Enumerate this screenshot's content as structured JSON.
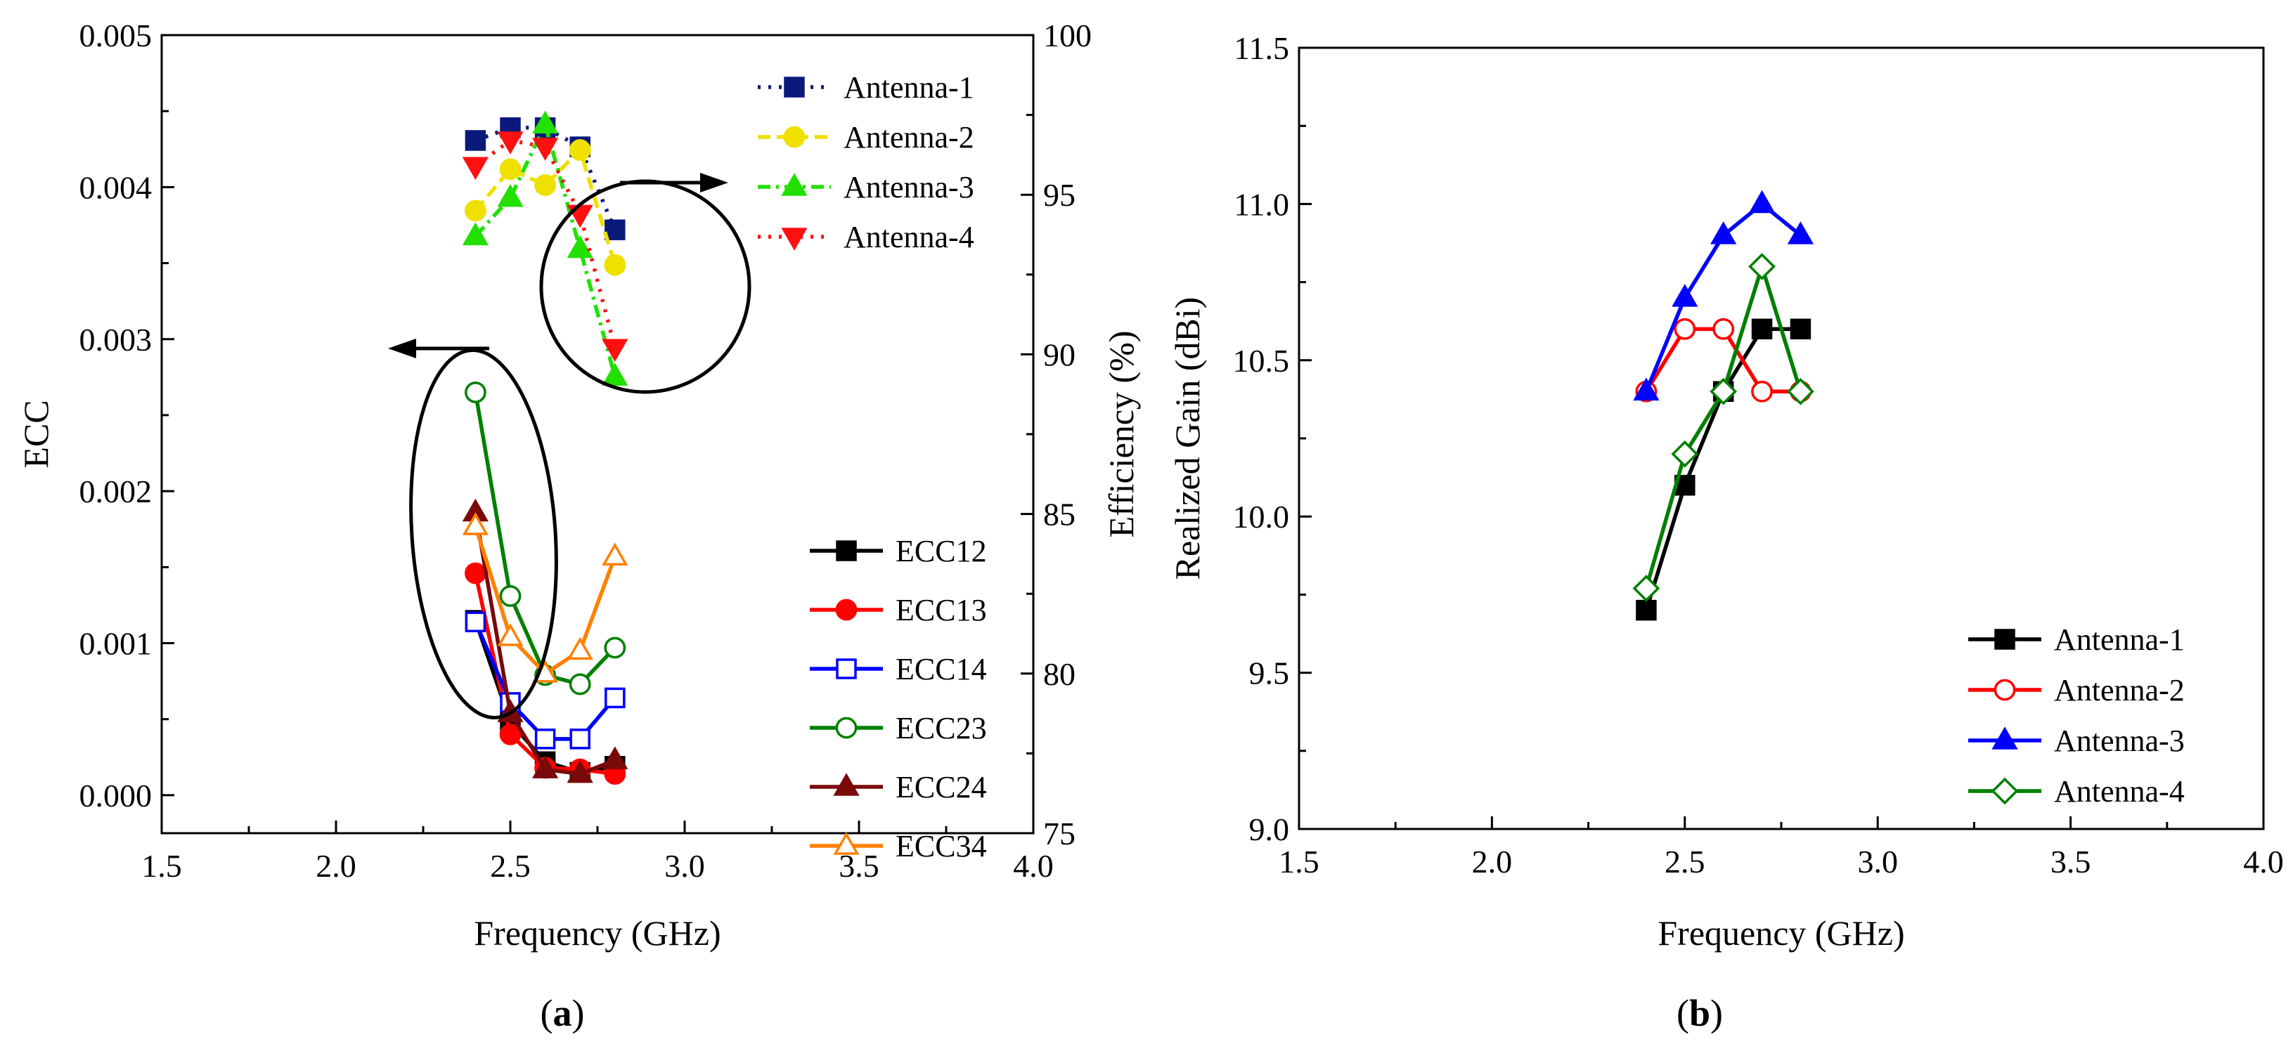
{
  "figure": {
    "panel_a_label_parts": [
      "(",
      "a",
      ")"
    ],
    "panel_b_label_parts": [
      "(",
      "b",
      ")"
    ]
  },
  "chart_data": [
    {
      "panel": "a",
      "type": "line",
      "xlabel": "Frequency (GHz)",
      "ylabel": "ECC",
      "y2label": "Efficiency (%)",
      "xlim": [
        1.5,
        4.0
      ],
      "ylim": [
        -0.00025,
        0.005
      ],
      "y2lim": [
        75,
        100
      ],
      "xticks": [
        "1.5",
        "2.0",
        "2.5",
        "3.0",
        "3.5",
        "4.0"
      ],
      "yticks": [
        "0.000",
        "0.001",
        "0.002",
        "0.003",
        "0.004",
        "0.005"
      ],
      "y2ticks": [
        "75",
        "80",
        "85",
        "90",
        "95",
        "100"
      ],
      "grid": false,
      "legend_efficiency_position": "top-right",
      "legend_ecc_position": "bottom-right",
      "x": [
        2.4,
        2.5,
        2.6,
        2.7,
        2.8
      ],
      "efficiency_series": [
        {
          "name": "Antenna-1",
          "axis": "right",
          "color": "#0a1a7a",
          "marker": "square",
          "filled": true,
          "dash": "dot",
          "values": [
            96.7,
            97.1,
            97.1,
            96.5,
            93.9
          ]
        },
        {
          "name": "Antenna-2",
          "axis": "right",
          "color": "#f0e000",
          "marker": "circle",
          "filled": true,
          "dash": "dash",
          "values": [
            94.5,
            95.8,
            95.3,
            96.4,
            92.8
          ]
        },
        {
          "name": "Antenna-3",
          "axis": "right",
          "color": "#22e000",
          "marker": "triangle-up",
          "filled": true,
          "dash": "dashdot",
          "values": [
            93.7,
            94.9,
            97.2,
            93.3,
            89.3
          ]
        },
        {
          "name": "Antenna-4",
          "axis": "right",
          "color": "#ff1010",
          "marker": "triangle-down",
          "filled": true,
          "dash": "dot",
          "values": [
            95.9,
            96.7,
            96.5,
            94.4,
            90.2
          ]
        }
      ],
      "ecc_series": [
        {
          "name": "ECC12",
          "axis": "left",
          "color": "#000000",
          "marker": "square",
          "filled": true,
          "values": [
            0.00115,
            0.00048,
            0.00022,
            0.00015,
            0.00019
          ]
        },
        {
          "name": "ECC13",
          "axis": "left",
          "color": "#ff0000",
          "marker": "circle",
          "filled": true,
          "values": [
            0.00146,
            0.0004,
            0.00018,
            0.00017,
            0.00014
          ]
        },
        {
          "name": "ECC14",
          "axis": "left",
          "color": "#0000ff",
          "marker": "square",
          "filled": false,
          "values": [
            0.00114,
            0.00061,
            0.00037,
            0.00037,
            0.00064
          ]
        },
        {
          "name": "ECC23",
          "axis": "left",
          "color": "#008000",
          "marker": "circle",
          "filled": false,
          "values": [
            0.00265,
            0.00131,
            0.00079,
            0.00073,
            0.00097
          ]
        },
        {
          "name": "ECC24",
          "axis": "left",
          "color": "#7a0a0a",
          "marker": "triangle-up",
          "filled": true,
          "values": [
            0.00186,
            0.00054,
            0.00017,
            0.00014,
            0.00023
          ]
        },
        {
          "name": "ECC34",
          "axis": "left",
          "color": "#ff8000",
          "marker": "triangle-up",
          "filled": false,
          "values": [
            0.00177,
            0.00104,
            0.0008,
            0.00095,
            0.00157
          ]
        }
      ],
      "annotations": [
        {
          "kind": "ellipse",
          "description": "groups Efficiency curves",
          "arrow": "right"
        },
        {
          "kind": "ellipse",
          "description": "groups ECC curves",
          "arrow": "left"
        }
      ]
    },
    {
      "panel": "b",
      "type": "line",
      "xlabel": "Frequency (GHz)",
      "ylabel": "Realized Gain (dBi)",
      "xlim": [
        1.5,
        4.0
      ],
      "ylim": [
        9.0,
        11.5
      ],
      "xticks": [
        "1.5",
        "2.0",
        "2.5",
        "3.0",
        "3.5",
        "4.0"
      ],
      "yticks": [
        "9.0",
        "9.5",
        "10.0",
        "10.5",
        "11.0",
        "11.5"
      ],
      "grid": false,
      "legend_position": "bottom-right",
      "x": [
        2.4,
        2.5,
        2.6,
        2.7,
        2.8
      ],
      "series": [
        {
          "name": "Antenna-1",
          "color": "#000000",
          "marker": "square",
          "filled": true,
          "values": [
            9.7,
            10.1,
            10.4,
            10.6,
            10.6
          ]
        },
        {
          "name": "Antenna-2",
          "color": "#ff0000",
          "marker": "circle",
          "filled": false,
          "values": [
            10.4,
            10.6,
            10.6,
            10.4,
            10.4
          ]
        },
        {
          "name": "Antenna-3",
          "color": "#0000ff",
          "marker": "triangle-up",
          "filled": true,
          "values": [
            10.4,
            10.7,
            10.9,
            11.0,
            10.9
          ]
        },
        {
          "name": "Antenna-4",
          "color": "#008000",
          "marker": "diamond",
          "filled": false,
          "values": [
            9.77,
            10.2,
            10.4,
            10.8,
            10.4
          ]
        }
      ]
    }
  ]
}
